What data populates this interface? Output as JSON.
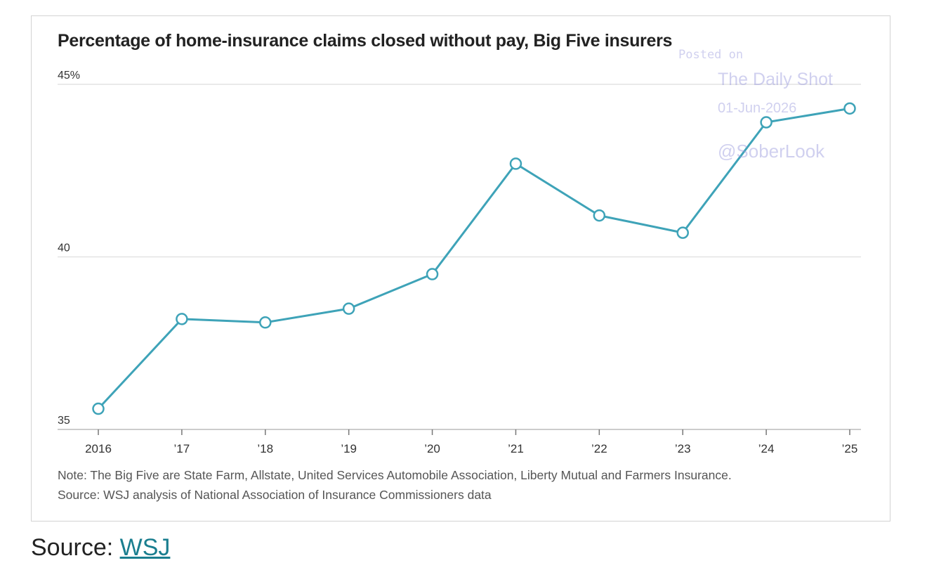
{
  "chart_data": {
    "type": "line",
    "title": "Percentage of home-insurance claims closed without pay, Big Five insurers",
    "categories": [
      "2016",
      "’17",
      "’18",
      "’19",
      "’20",
      "’21",
      "’22",
      "’23",
      "’24",
      "’25"
    ],
    "series": [
      {
        "values": [
          35.6,
          38.2,
          38.1,
          38.5,
          39.5,
          42.7,
          41.2,
          40.7,
          43.9,
          44.3
        ]
      }
    ],
    "ylim": [
      35,
      45
    ],
    "yticks": [
      {
        "value": 45,
        "label": "45%"
      },
      {
        "value": 40,
        "label": "40"
      },
      {
        "value": 35,
        "label": "35"
      }
    ],
    "grid": true,
    "line_color": "#3ea3b8"
  },
  "note": "Note: The Big Five are State Farm, Allstate, United Services Automobile Association, Liberty Mutual and Farmers Insurance.",
  "source_text": "Source: WSJ analysis of National Association of Insurance Commissioners data",
  "watermark": {
    "posted": "Posted on",
    "name": "The Daily Shot",
    "date": "01-Jun-2026",
    "handle": "@SoberLook"
  },
  "caption": {
    "prefix": "Source: ",
    "link": "WSJ"
  }
}
